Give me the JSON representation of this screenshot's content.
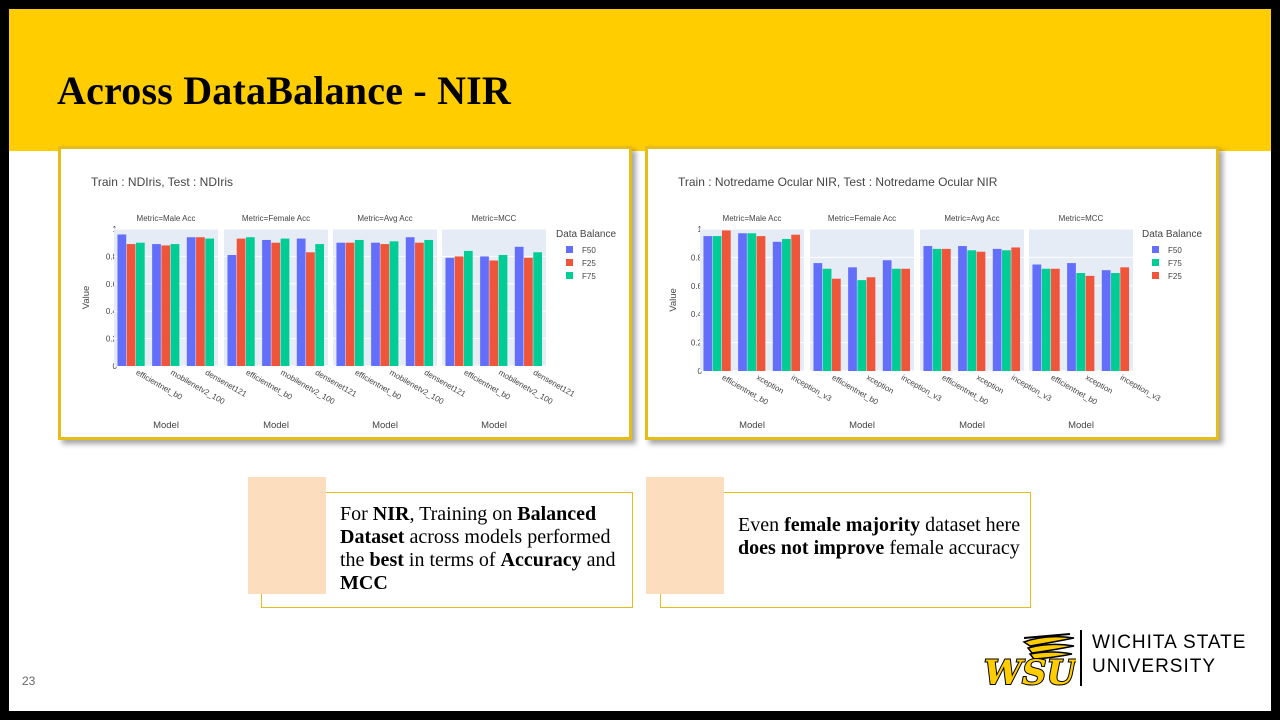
{
  "slide": {
    "title": "Across DataBalance - NIR",
    "page_number": "23"
  },
  "colors": {
    "title_bar": "#FFCD00",
    "chart_border": "#E5BC1A",
    "callout_swatch": "#FCDDBD",
    "F50": "#636EFA",
    "F25": "#EF553B",
    "F75": "#00CC96",
    "plot_bg": "#E5ECF6"
  },
  "callouts": [
    {
      "parts": [
        {
          "text": "For ",
          "bold": false
        },
        {
          "text": "NIR",
          "bold": true
        },
        {
          "text": ", Training on ",
          "bold": false
        },
        {
          "text": "Balanced Dataset",
          "bold": true
        },
        {
          "text": " across models performed the ",
          "bold": false
        },
        {
          "text": "best",
          "bold": true
        },
        {
          "text": " in terms of ",
          "bold": false
        },
        {
          "text": "Accuracy",
          "bold": true
        },
        {
          "text": " and ",
          "bold": false
        },
        {
          "text": "MCC",
          "bold": true
        }
      ]
    },
    {
      "parts": [
        {
          "text": "Even ",
          "bold": false
        },
        {
          "text": "female majority",
          "bold": true
        },
        {
          "text": " dataset here ",
          "bold": false
        },
        {
          "text": "does not improve",
          "bold": true
        },
        {
          "text": " female accuracy",
          "bold": false
        }
      ]
    }
  ],
  "logo": {
    "mark": "WSU",
    "line1": "WICHITA STATE",
    "line2": "UNIVERSITY"
  },
  "chart_data": [
    {
      "type": "bar",
      "title": "Train : NDIris, Test : NDIris",
      "xlabel": "Model",
      "ylabel": "Value",
      "ylim": [
        0,
        1
      ],
      "yticks": [
        0,
        0.2,
        0.4,
        0.6,
        0.8,
        1
      ],
      "y_tick_labels": [
        "0",
        "0.2",
        "0.4",
        "0.6",
        "0.8",
        "1"
      ],
      "grid": true,
      "legend_title": "Data Balance",
      "legend_position": "right",
      "categories": [
        "efficientnet_b0",
        "mobilenetv2_100",
        "densenet121"
      ],
      "facets": [
        {
          "title": "Metric=Male Acc",
          "series": [
            {
              "name": "F50",
              "values": [
                0.96,
                0.89,
                0.94
              ]
            },
            {
              "name": "F25",
              "values": [
                0.89,
                0.88,
                0.94
              ]
            },
            {
              "name": "F75",
              "values": [
                0.9,
                0.89,
                0.93
              ]
            }
          ]
        },
        {
          "title": "Metric=Female Acc",
          "series": [
            {
              "name": "F50",
              "values": [
                0.81,
                0.92,
                0.93
              ]
            },
            {
              "name": "F25",
              "values": [
                0.93,
                0.9,
                0.83
              ]
            },
            {
              "name": "F75",
              "values": [
                0.94,
                0.93,
                0.89
              ]
            }
          ]
        },
        {
          "title": "Metric=Avg Acc",
          "series": [
            {
              "name": "F50",
              "values": [
                0.9,
                0.9,
                0.94
              ]
            },
            {
              "name": "F25",
              "values": [
                0.9,
                0.89,
                0.9
              ]
            },
            {
              "name": "F75",
              "values": [
                0.92,
                0.91,
                0.92
              ]
            }
          ]
        },
        {
          "title": "Metric=MCC",
          "series": [
            {
              "name": "F50",
              "values": [
                0.79,
                0.8,
                0.87
              ]
            },
            {
              "name": "F25",
              "values": [
                0.8,
                0.77,
                0.79
              ]
            },
            {
              "name": "F75",
              "values": [
                0.84,
                0.81,
                0.83
              ]
            }
          ]
        }
      ]
    },
    {
      "type": "bar",
      "title": "Train : Notredame Ocular NIR, Test : Notredame Ocular NIR",
      "xlabel": "Model",
      "ylabel": "Value",
      "ylim": [
        0,
        1
      ],
      "yticks": [
        0,
        0.2,
        0.4,
        0.6,
        0.8,
        1
      ],
      "y_tick_labels": [
        "0",
        "0.2",
        "0.4",
        "0.6",
        "0.8",
        "1"
      ],
      "grid": true,
      "legend_title": "Data Balance",
      "legend_position": "right",
      "categories": [
        "efficientnet_b0",
        "xception",
        "inception_v3"
      ],
      "facets": [
        {
          "title": "Metric=Male Acc",
          "series": [
            {
              "name": "F50",
              "values": [
                0.95,
                0.97,
                0.91
              ]
            },
            {
              "name": "F75",
              "values": [
                0.95,
                0.97,
                0.93
              ]
            },
            {
              "name": "F25",
              "values": [
                0.99,
                0.95,
                0.96
              ]
            }
          ]
        },
        {
          "title": "Metric=Female Acc",
          "series": [
            {
              "name": "F50",
              "values": [
                0.76,
                0.73,
                0.78
              ]
            },
            {
              "name": "F75",
              "values": [
                0.72,
                0.64,
                0.72
              ]
            },
            {
              "name": "F25",
              "values": [
                0.65,
                0.66,
                0.72
              ]
            }
          ]
        },
        {
          "title": "Metric=Avg Acc",
          "series": [
            {
              "name": "F50",
              "values": [
                0.88,
                0.88,
                0.86
              ]
            },
            {
              "name": "F75",
              "values": [
                0.86,
                0.85,
                0.85
              ]
            },
            {
              "name": "F25",
              "values": [
                0.86,
                0.84,
                0.87
              ]
            }
          ]
        },
        {
          "title": "Metric=MCC",
          "series": [
            {
              "name": "F50",
              "values": [
                0.75,
                0.76,
                0.71
              ]
            },
            {
              "name": "F75",
              "values": [
                0.72,
                0.69,
                0.69
              ]
            },
            {
              "name": "F25",
              "values": [
                0.72,
                0.67,
                0.73
              ]
            }
          ]
        }
      ]
    }
  ]
}
